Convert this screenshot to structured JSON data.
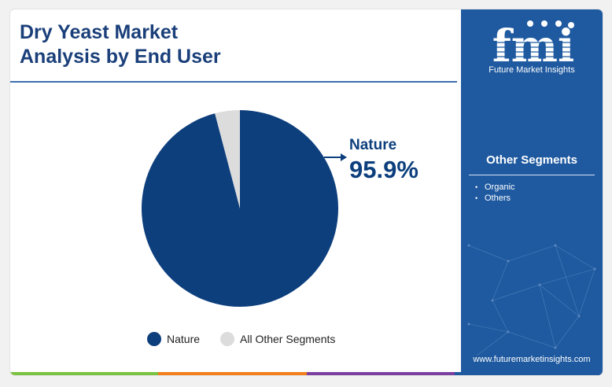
{
  "title_line1": "Dry Yeast Market",
  "title_line2": "Analysis by End User",
  "brand": {
    "logo_text": "fmi",
    "tagline": "Future Market Insights",
    "website": "www.futuremarketinsights.com",
    "panel_color": "#1f5aa0"
  },
  "other_segments": {
    "title": "Other Segments",
    "items": [
      "Organic",
      "Others"
    ]
  },
  "callout": {
    "label": "Nature",
    "value": "95.9%"
  },
  "bottom_bar_colors": [
    "#7cc242",
    "#f07f1c",
    "#7b3fa0",
    "#1f5aa0"
  ],
  "chart_data": {
    "type": "pie",
    "title": "Dry Yeast Market Analysis by End User",
    "slices": [
      {
        "name": "Nature",
        "value": 95.9,
        "color": "#0d3f7d"
      },
      {
        "name": "All Other Segments",
        "value": 4.1,
        "color": "#dcdcdc"
      }
    ],
    "legend_placement": "bottom"
  }
}
